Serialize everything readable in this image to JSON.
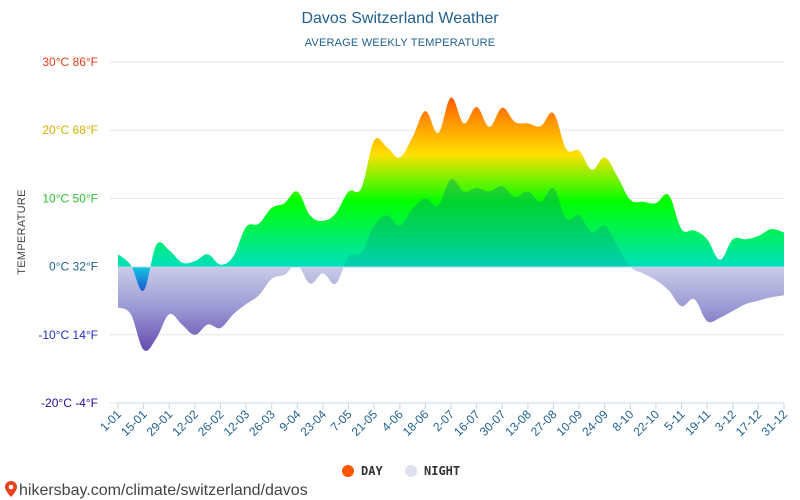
{
  "chart_data": {
    "type": "area",
    "title": "Davos Switzerland Weather",
    "subtitle": "AVERAGE WEEKLY TEMPERATURE",
    "ylabel": "TEMPERATURE",
    "ylim": [
      -20,
      30
    ],
    "y_ticks": [
      {
        "value": 30,
        "label": "30°C 86°F",
        "color": "#e8401c"
      },
      {
        "value": 20,
        "label": "20°C 68°F",
        "color": "#d4b000"
      },
      {
        "value": 10,
        "label": "10°C 50°F",
        "color": "#30c030"
      },
      {
        "value": 0,
        "label": "0°C 32°F",
        "color": "#1f5f8f"
      },
      {
        "value": -10,
        "label": "-10°C 14°F",
        "color": "#2030c0"
      },
      {
        "value": -20,
        "label": "-20°C -4°F",
        "color": "#2010a0"
      }
    ],
    "x_ticks": [
      "1-01",
      "15-01",
      "29-01",
      "12-02",
      "26-02",
      "12-03",
      "26-03",
      "9-04",
      "23-04",
      "7-05",
      "21-05",
      "4-06",
      "18-06",
      "2-07",
      "16-07",
      "30-07",
      "13-08",
      "27-08",
      "10-09",
      "24-09",
      "8-10",
      "22-10",
      "5-11",
      "19-11",
      "3-12",
      "17-12",
      "31-12"
    ],
    "series": [
      {
        "name": "DAY",
        "color": "#ff5500",
        "values": [
          1.8,
          0.2,
          -3.5,
          3.2,
          2.4,
          0.6,
          0.8,
          1.8,
          0.3,
          1.5,
          5.8,
          6.3,
          8.6,
          9.3,
          11.0,
          7.5,
          6.7,
          7.8,
          11.0,
          11.5,
          18.5,
          17.5,
          16.0,
          19.0,
          22.8,
          19.6,
          24.8,
          21.0,
          23.4,
          20.5,
          23.3,
          21.2,
          21.0,
          20.6,
          22.5,
          17.2,
          17.0,
          14.2,
          16.0,
          13.2,
          9.8,
          9.5,
          9.3,
          10.5,
          5.5,
          5.3,
          4.0,
          1.0,
          4.0,
          4.0,
          4.5,
          5.5,
          5.0
        ]
      },
      {
        "name": "NIGHT",
        "color": "#dde2ee",
        "values": [
          -6.0,
          -7.0,
          -12.2,
          -10.5,
          -7.0,
          -8.5,
          -10.0,
          -8.5,
          -9.0,
          -7.0,
          -5.5,
          -4.2,
          -1.8,
          -1.2,
          0.2,
          -2.5,
          -1.0,
          -2.5,
          1.5,
          2.0,
          6.0,
          7.5,
          6.0,
          8.5,
          10.0,
          9.0,
          12.8,
          11.0,
          11.5,
          11.0,
          11.8,
          10.2,
          11.0,
          9.5,
          11.5,
          7.0,
          7.5,
          5.0,
          6.0,
          3.0,
          0.0,
          -1.0,
          -2.0,
          -3.5,
          -5.8,
          -4.8,
          -8.0,
          -7.5,
          -6.5,
          -5.5,
          -5.0,
          -4.5,
          -4.2
        ]
      }
    ],
    "grid": true,
    "legend": "bottom-center"
  },
  "source": {
    "label": "hikersbay.com/climate/switzerland/davos",
    "pin_color": "#e8401c"
  },
  "colors": {
    "title": "#1f5f8f",
    "gradient_stops": [
      "#ff0000",
      "#ffd200",
      "#00ff00",
      "#00d090",
      "#a0a8e0",
      "#5040b0"
    ]
  }
}
